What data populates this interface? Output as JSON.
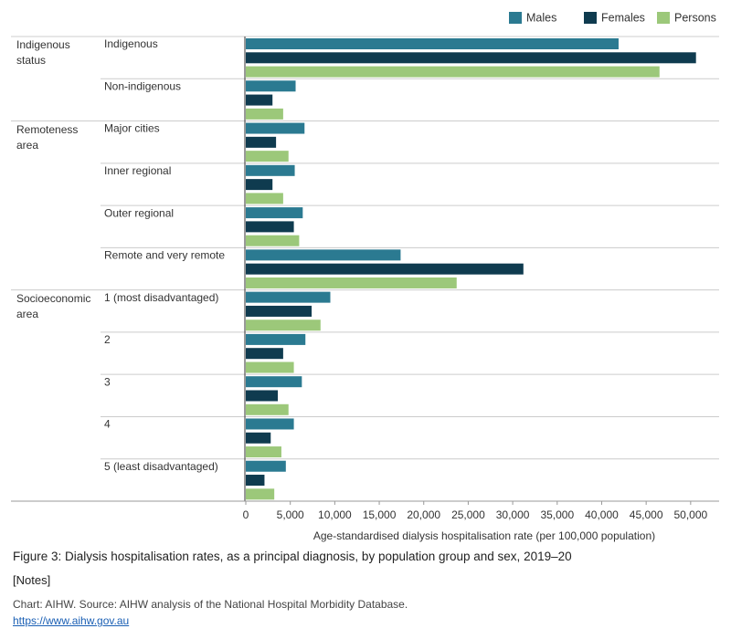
{
  "chart_data": {
    "type": "bar",
    "orientation": "horizontal",
    "x_label": "Age-standardised dialysis hospitalisation rate (per 100,000 population)",
    "groups": [
      "Indigenous status",
      null,
      "Remoteness area",
      null,
      null,
      null,
      "Socioeconomic area",
      null,
      null,
      null,
      null
    ],
    "categories": [
      "Indigenous",
      "Non-indigenous",
      "Major cities",
      "Inner regional",
      "Outer regional",
      "Remote and very remote",
      "1 (most disadvantaged)",
      "2",
      "3",
      "4",
      "5 (least disadvantaged)"
    ],
    "series": [
      {
        "name": "Males",
        "color": "#2b7a91",
        "values": [
          41900,
          5600,
          6600,
          5500,
          6400,
          17400,
          9500,
          6700,
          6300,
          5400,
          4500
        ]
      },
      {
        "name": "Females",
        "color": "#0f3b4f",
        "values": [
          50600,
          3000,
          3400,
          3000,
          5400,
          31200,
          7400,
          4200,
          3600,
          2800,
          2100
        ]
      },
      {
        "name": "Persons",
        "color": "#9cc87a",
        "values": [
          46500,
          4200,
          4800,
          4200,
          6000,
          23700,
          8400,
          5400,
          4800,
          4000,
          3200
        ]
      }
    ],
    "xlim": [
      0,
      53200
    ],
    "xticks": [
      0,
      {
        "value": 5000,
        "label": "5,000"
      },
      {
        "value": 10000,
        "label": "10,000"
      },
      {
        "value": 15000,
        "label": "15,000"
      },
      {
        "value": 20000,
        "label": "20,000"
      },
      {
        "value": 25000,
        "label": "25,000"
      },
      {
        "value": 30000,
        "label": "30,000"
      },
      {
        "value": 35000,
        "label": "35,000"
      },
      {
        "value": 40000,
        "label": "40,000"
      },
      {
        "value": 45000,
        "label": "45,000"
      },
      {
        "value": 50000,
        "label": "50,000"
      }
    ],
    "legend": "top-right",
    "grid": false
  },
  "caption": "Figure 3: Dialysis hospitalisation rates, as a principal diagnosis, by population group and sex, 2019–20",
  "notes": "[Notes]",
  "source": "Chart: AIHW. Source: AIHW analysis of the National Hospital Morbidity Database.",
  "url": "https://www.aihw.gov.au"
}
